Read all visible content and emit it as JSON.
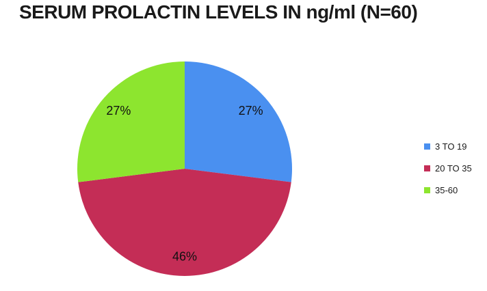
{
  "page": {
    "background_color": "#FFFFFF"
  },
  "chart_data": {
    "type": "pie",
    "title": "SERUM PROLACTIN LEVELS IN ng/ml (N=60)",
    "categories": [
      "3 TO 19",
      "20 TO 35",
      "35-60"
    ],
    "values": [
      27,
      46,
      27
    ],
    "data_labels": [
      "27%",
      "46%",
      "27%"
    ],
    "colors": [
      "#4A90F0",
      "#C42D56",
      "#8DE52F"
    ],
    "unit": "%",
    "start_angle_deg": 0,
    "direction": "clockwise",
    "legend_position": "right",
    "data_label_color": "#111111",
    "title_color": "#1A1A1A"
  }
}
